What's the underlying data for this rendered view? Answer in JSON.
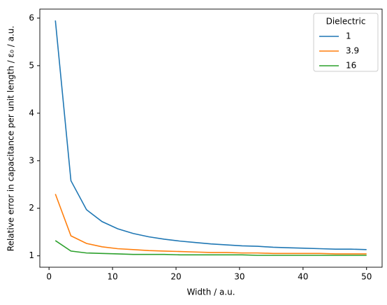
{
  "chart_data": {
    "type": "line",
    "xlabel": "Width / a.u.",
    "ylabel": "Relative error in capacitance per unit length / ε₀ / a.u.",
    "x": [
      1,
      3.45,
      5.9,
      8.35,
      10.8,
      13.25,
      15.7,
      18.15,
      20.6,
      23.05,
      25.5,
      27.95,
      30.4,
      32.85,
      35.3,
      37.75,
      40.2,
      42.65,
      45.1,
      47.55,
      50
    ],
    "series": [
      {
        "name": "1",
        "color": "#1f77b4",
        "values": [
          5.95,
          2.58,
          1.97,
          1.72,
          1.57,
          1.47,
          1.4,
          1.35,
          1.31,
          1.28,
          1.25,
          1.23,
          1.21,
          1.2,
          1.18,
          1.17,
          1.16,
          1.15,
          1.14,
          1.14,
          1.13
        ]
      },
      {
        "name": "3.9",
        "color": "#ff7f0e",
        "values": [
          2.3,
          1.42,
          1.26,
          1.19,
          1.15,
          1.13,
          1.11,
          1.1,
          1.09,
          1.08,
          1.07,
          1.07,
          1.06,
          1.06,
          1.05,
          1.05,
          1.05,
          1.05,
          1.04,
          1.04,
          1.04
        ]
      },
      {
        "name": "16",
        "color": "#2ca02c",
        "values": [
          1.32,
          1.1,
          1.06,
          1.05,
          1.04,
          1.03,
          1.03,
          1.03,
          1.02,
          1.02,
          1.02,
          1.02,
          1.02,
          1.01,
          1.01,
          1.01,
          1.01,
          1.01,
          1.01,
          1.01,
          1.01
        ]
      }
    ],
    "legend_title": "Dielectric",
    "legend": "upper right",
    "xlim": [
      -1.45,
      52.45
    ],
    "xticks": [
      0,
      10,
      20,
      30,
      40,
      50
    ],
    "ylim": [
      0.76,
      6.19
    ],
    "yticks": [
      1,
      2,
      3,
      4,
      5,
      6
    ]
  }
}
